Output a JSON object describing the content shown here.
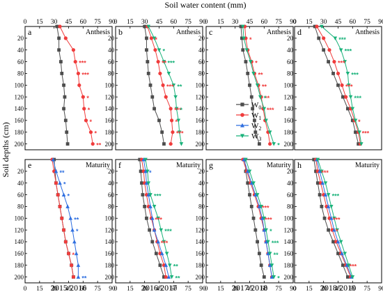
{
  "figure": {
    "top_axis_title": "Soil water content (mm)",
    "y_axis_title": "Soil depths (cm)"
  },
  "legend": {
    "entries": [
      {
        "key": "W0",
        "label_main": "W",
        "label_sub": "0",
        "color": "#4d4d4d",
        "marker": "square"
      },
      {
        "key": "W1",
        "label_main": "W",
        "label_sub": "1",
        "color": "#f03c3c",
        "marker": "circle"
      },
      {
        "key": "W2",
        "label_main": "W",
        "label_sub": "2",
        "color": "#2f6fe0",
        "marker": "triangle-up"
      },
      {
        "key": "W3",
        "label_main": "W",
        "label_sub": "3",
        "color": "#19b27a",
        "marker": "triangle-down"
      }
    ]
  },
  "chart_data": {
    "type": "line",
    "xlim": [
      0,
      90
    ],
    "x_ticks": [
      0,
      15,
      30,
      45,
      60,
      75,
      90
    ],
    "x_tick_labels": [
      "0",
      "15",
      "30",
      "45",
      "60",
      "75",
      "90"
    ],
    "ylim": [
      0,
      210
    ],
    "depth_ticks": [
      20,
      40,
      60,
      80,
      100,
      120,
      140,
      160,
      180,
      200
    ],
    "depth_tick_labels": [
      "20",
      "40",
      "60",
      "80",
      "100",
      "120",
      "140",
      "160",
      "180",
      "200"
    ],
    "xlabel": "Soil water content (mm)",
    "ylabel": "Soil depths (cm)",
    "panels": [
      {
        "letter": "a",
        "stage": "Anthesis",
        "season": "2015/2016",
        "series": {
          "W0": [
            33,
            35,
            35,
            37,
            38,
            40,
            41,
            40,
            42,
            43,
            44
          ],
          "W1": [
            36,
            42,
            50,
            52,
            55,
            56,
            60,
            61,
            63,
            68,
            70
          ]
        },
        "sig": [
          {
            "series": "W1",
            "depth": 60,
            "text": "***"
          },
          {
            "series": "W1",
            "depth": 80,
            "text": "***"
          },
          {
            "series": "W1",
            "depth": 120,
            "text": "*"
          },
          {
            "series": "W1",
            "depth": 140,
            "text": "*"
          },
          {
            "series": "W1",
            "depth": 160,
            "text": "*"
          },
          {
            "series": "W1",
            "depth": 180,
            "text": "*"
          },
          {
            "series": "W1",
            "depth": 200,
            "text": "**"
          }
        ]
      },
      {
        "letter": "b",
        "stage": "Anthesis",
        "season": "2016/2017",
        "series": {
          "W0": [
            30,
            32,
            32,
            33,
            34,
            36,
            38,
            40,
            45,
            48,
            50
          ],
          "W1": [
            33,
            37,
            41,
            44,
            46,
            49,
            52,
            57,
            58,
            59,
            57
          ],
          "W3": [
            34,
            40,
            45,
            50,
            55,
            60,
            62,
            63,
            65,
            66,
            68
          ]
        },
        "sig": [
          {
            "series": "W1",
            "depth": 20,
            "text": "*"
          },
          {
            "series": "W3",
            "depth": 40,
            "text": "*"
          },
          {
            "series": "W1",
            "depth": 60,
            "text": "**"
          },
          {
            "series": "W3",
            "depth": 60,
            "text": "***"
          },
          {
            "series": "W1",
            "depth": 100,
            "text": "***"
          },
          {
            "series": "W3",
            "depth": 100,
            "text": "**"
          },
          {
            "series": "W1",
            "depth": 140,
            "text": "***"
          },
          {
            "series": "W3",
            "depth": 140,
            "text": "*"
          },
          {
            "series": "W1",
            "depth": 160,
            "text": "*"
          },
          {
            "series": "W1",
            "depth": 180,
            "text": "***"
          }
        ]
      },
      {
        "letter": "c",
        "stage": "Anthesis",
        "season": "2017/2018",
        "series": {
          "W0": [
            36,
            37,
            38,
            41,
            43,
            45,
            47,
            48,
            50,
            51,
            55
          ],
          "W1": [
            40,
            41,
            43,
            47,
            50,
            54,
            57,
            59,
            61,
            64,
            66
          ],
          "W3": [
            38,
            39,
            42,
            46,
            49,
            53,
            56,
            60,
            62,
            66,
            70
          ]
        },
        "sig": [
          {
            "series": "W1",
            "depth": 20,
            "text": "*"
          },
          {
            "series": "W1",
            "depth": 60,
            "text": "*"
          },
          {
            "series": "W1",
            "depth": 80,
            "text": "**"
          },
          {
            "series": "W1",
            "depth": 100,
            "text": "**"
          },
          {
            "series": "W1",
            "depth": 120,
            "text": "**"
          },
          {
            "series": "W1",
            "depth": 140,
            "text": "***"
          },
          {
            "series": "W3",
            "depth": 120,
            "text": "*"
          },
          {
            "series": "W3",
            "depth": 200,
            "text": "*"
          }
        ]
      },
      {
        "letter": "d",
        "stage": "Anthesis",
        "season": "2018/2019",
        "series": {
          "W0": [
            21,
            25,
            30,
            35,
            40,
            45,
            50,
            55,
            60,
            63,
            66
          ],
          "W1": [
            23,
            30,
            36,
            41,
            45,
            49,
            53,
            58,
            62,
            66,
            68
          ],
          "W3": [
            28,
            42,
            48,
            52,
            55,
            56,
            58,
            60,
            63,
            67,
            69
          ]
        },
        "sig": [
          {
            "series": "W3",
            "depth": 20,
            "text": "***"
          },
          {
            "series": "W3",
            "depth": 40,
            "text": "***"
          },
          {
            "series": "W1",
            "depth": 60,
            "text": "***"
          },
          {
            "series": "W3",
            "depth": 80,
            "text": "***"
          },
          {
            "series": "W1",
            "depth": 100,
            "text": "***"
          },
          {
            "series": "W3",
            "depth": 120,
            "text": "***"
          },
          {
            "series": "W1",
            "depth": 160,
            "text": "*"
          },
          {
            "series": "W1",
            "depth": 180,
            "text": "***"
          }
        ]
      },
      {
        "letter": "e",
        "stage": "Maturity",
        "season": "2015/2016",
        "series": {
          "W0": [
            30,
            31,
            32,
            34,
            36,
            38,
            40,
            42,
            45,
            48,
            50
          ],
          "W1": [
            28,
            30,
            32,
            34,
            36,
            38,
            40,
            42,
            45,
            48,
            50
          ],
          "W2": [
            29,
            32,
            36,
            40,
            44,
            47,
            49,
            51,
            53,
            55,
            55
          ]
        },
        "sig": [
          {
            "series": "W2",
            "depth": 20,
            "text": "**"
          },
          {
            "series": "W2",
            "depth": 40,
            "text": "*"
          },
          {
            "series": "W2",
            "depth": 60,
            "text": "*"
          },
          {
            "series": "W2",
            "depth": 100,
            "text": "**"
          },
          {
            "series": "W2",
            "depth": 120,
            "text": "*"
          },
          {
            "series": "W1",
            "depth": 160,
            "text": "*"
          },
          {
            "series": "W2",
            "depth": 200,
            "text": "**"
          }
        ]
      },
      {
        "letter": "f",
        "stage": "Maturity",
        "season": "2016/2017",
        "series": {
          "W0": [
            25,
            26,
            27,
            28,
            30,
            32,
            35,
            38,
            42,
            46,
            50
          ],
          "W1": [
            27,
            29,
            30,
            32,
            34,
            37,
            40,
            43,
            46,
            50,
            52
          ],
          "W2": [
            29,
            31,
            32,
            34,
            36,
            38,
            40,
            44,
            48,
            52,
            55
          ],
          "W3": [
            31,
            33,
            34,
            36,
            40,
            44,
            47,
            50,
            53,
            56,
            58
          ]
        },
        "sig": [
          {
            "series": "W2",
            "depth": 20,
            "text": "*"
          },
          {
            "series": "W3",
            "depth": 60,
            "text": "***"
          },
          {
            "series": "W1",
            "depth": 100,
            "text": "***"
          },
          {
            "series": "W3",
            "depth": 120,
            "text": "***"
          },
          {
            "series": "W1",
            "depth": 140,
            "text": "***"
          },
          {
            "series": "W3",
            "depth": 180,
            "text": "**"
          },
          {
            "series": "W3",
            "depth": 200,
            "text": "**"
          }
        ]
      },
      {
        "letter": "g",
        "stage": "Maturity",
        "season": "2017/2018",
        "series": {
          "W0": [
            40,
            41,
            43,
            45,
            47,
            49,
            51,
            53,
            55,
            57,
            60
          ],
          "W1": [
            38,
            42,
            46,
            50,
            54,
            57,
            60,
            62,
            64,
            66,
            68
          ],
          "W2": [
            39,
            43,
            47,
            51,
            55,
            58,
            60,
            62,
            64,
            66,
            68
          ],
          "W3": [
            41,
            45,
            49,
            53,
            57,
            60,
            62,
            64,
            66,
            68,
            70
          ]
        },
        "sig": [
          {
            "series": "W1",
            "depth": 80,
            "text": "***"
          },
          {
            "series": "W1",
            "depth": 100,
            "text": "***"
          },
          {
            "series": "W3",
            "depth": 120,
            "text": "*"
          },
          {
            "series": "W3",
            "depth": 140,
            "text": "***"
          },
          {
            "series": "W3",
            "depth": 160,
            "text": "**"
          },
          {
            "series": "W3",
            "depth": 200,
            "text": "*"
          }
        ]
      },
      {
        "letter": "h",
        "stage": "Maturity",
        "season": "2018/2019",
        "series": {
          "W0": [
            20,
            22,
            24,
            26,
            28,
            31,
            35,
            40,
            45,
            50,
            55
          ],
          "W1": [
            22,
            24,
            27,
            30,
            33,
            36,
            39,
            43,
            48,
            53,
            58
          ],
          "W2": [
            23,
            26,
            29,
            32,
            35,
            38,
            41,
            45,
            49,
            54,
            59
          ],
          "W3": [
            24,
            28,
            32,
            35,
            38,
            41,
            44,
            48,
            52,
            56,
            60
          ]
        },
        "sig": [
          {
            "series": "W1",
            "depth": 20,
            "text": "***"
          },
          {
            "series": "W3",
            "depth": 60,
            "text": "***"
          },
          {
            "series": "W1",
            "depth": 100,
            "text": "***"
          },
          {
            "series": "W1",
            "depth": 120,
            "text": "*"
          },
          {
            "series": "W1",
            "depth": 180,
            "text": "***"
          }
        ]
      }
    ]
  }
}
